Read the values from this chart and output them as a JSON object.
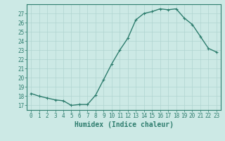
{
  "x": [
    0,
    1,
    2,
    3,
    4,
    5,
    6,
    7,
    8,
    9,
    10,
    11,
    12,
    13,
    14,
    15,
    16,
    17,
    18,
    19,
    20,
    21,
    22,
    23
  ],
  "y": [
    18.3,
    18.0,
    17.8,
    17.6,
    17.5,
    17.0,
    17.1,
    17.1,
    18.1,
    19.8,
    21.5,
    23.0,
    24.3,
    26.3,
    27.0,
    27.2,
    27.5,
    27.4,
    27.5,
    26.5,
    25.8,
    24.5,
    23.2,
    22.8
  ],
  "line_color": "#2e7d6e",
  "marker": "+",
  "marker_size": 3,
  "bg_color": "#cce9e5",
  "grid_color": "#b0d4d0",
  "xlabel": "Humidex (Indice chaleur)",
  "xlim": [
    -0.5,
    23.5
  ],
  "ylim": [
    16.5,
    28.0
  ],
  "yticks": [
    17,
    18,
    19,
    20,
    21,
    22,
    23,
    24,
    25,
    26,
    27
  ],
  "xticks": [
    0,
    1,
    2,
    3,
    4,
    5,
    6,
    7,
    8,
    9,
    10,
    11,
    12,
    13,
    14,
    15,
    16,
    17,
    18,
    19,
    20,
    21,
    22,
    23
  ],
  "tick_label_fontsize": 5.5,
  "xlabel_fontsize": 7.0,
  "axis_color": "#2e7d6e",
  "linewidth": 1.0,
  "markeredgewidth": 0.8
}
